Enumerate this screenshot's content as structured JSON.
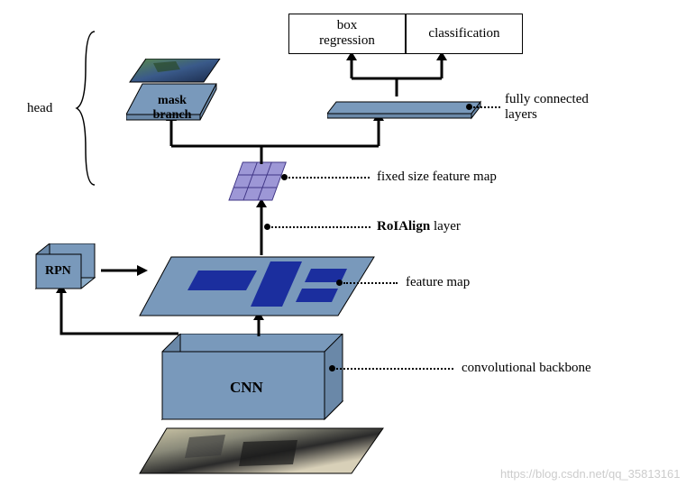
{
  "labels": {
    "box_regression": "box\nregression",
    "classification": "classification",
    "mask_branch": "mask\nbranch",
    "fc_layers": "fully connected\nlayers",
    "fixed_size": "fixed size feature map",
    "roialign": "RoIAlign layer",
    "feature_map": "feature map",
    "conv_backbone": "convolutional backbone",
    "cnn": "CNN",
    "rpn": "RPN",
    "head": "head"
  },
  "colors": {
    "cube_fill": "#7999bb",
    "cube_top": "#8bacc9",
    "cube_side": "#6a88a8",
    "dark_blue": "#1b2e9e",
    "grid_fill": "#9d97d6",
    "grid_stroke": "#3f3585",
    "photo1": "linear-gradient(135deg,#cfc8a8 0%,#5a5a4a 40%,#2a2a2a 60%,#d8d0b8 100%)",
    "photo2": "linear-gradient(135deg,#4a6b3a 0%,#3a5a8a 50%,#1a2a4a 100%)"
  },
  "watermark": "https://blog.csdn.net/qq_35813161"
}
